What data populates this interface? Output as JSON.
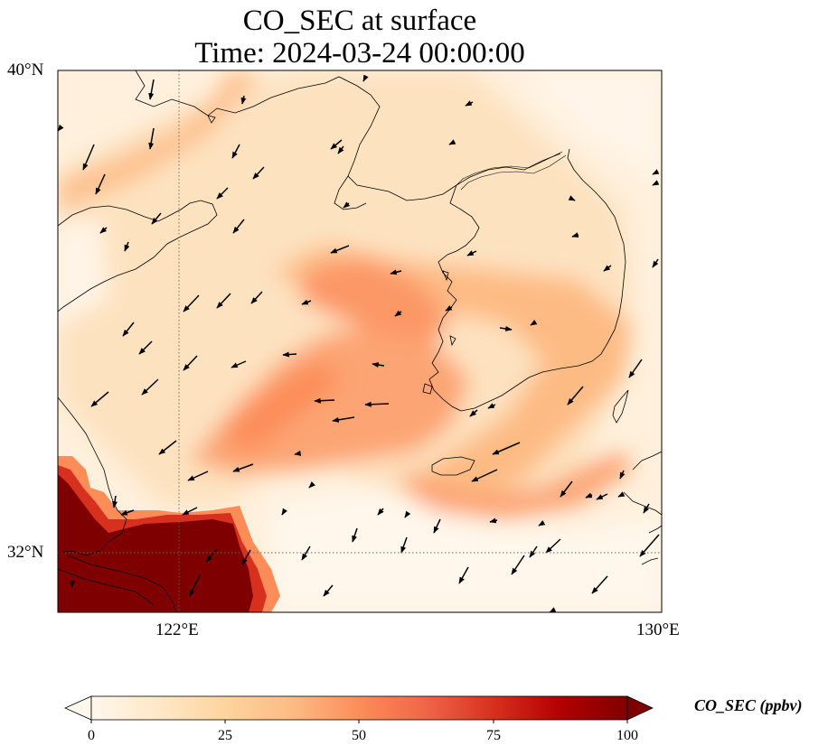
{
  "title": {
    "line1": "CO_SEC at surface",
    "line2": "Time: 2024-03-24 00:00:00"
  },
  "map": {
    "projection": "PlateCarree",
    "lon_range": [
      120.4,
      130.0
    ],
    "lat_range": [
      31.0,
      40.0
    ],
    "gridlines": {
      "lons": [
        122,
        130
      ],
      "lats": [
        32,
        40
      ],
      "style": "dotted"
    },
    "features": [
      "coastlines"
    ],
    "overlay": "wind vectors (arrows)"
  },
  "axes": {
    "lat_ticks": [
      "40°N",
      "32°N"
    ],
    "lon_ticks": [
      "122°E",
      "130°E"
    ]
  },
  "colorbar": {
    "label": "CO_SEC (ppbv)",
    "cmap": "OrRd",
    "min": 0,
    "max": 100,
    "extend": "both",
    "ticks": [
      "0",
      "25",
      "50",
      "75",
      "100"
    ]
  },
  "colors": {
    "c0": "#fff7ec",
    "c1": "#fee8c8",
    "c2": "#fdd49e",
    "c3": "#fdbb84",
    "c4": "#fc8d59",
    "c5": "#ef6548",
    "c6": "#d7301f",
    "c7": "#b30000",
    "c8": "#7f0000"
  }
}
